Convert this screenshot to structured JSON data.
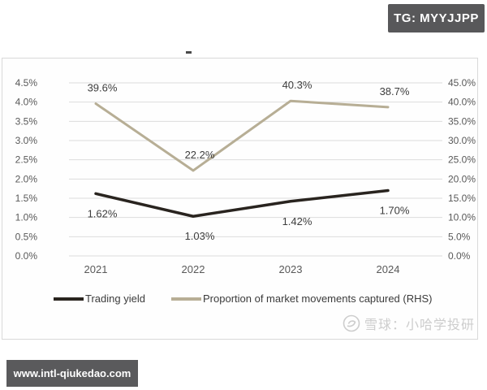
{
  "page": {
    "tg_badge": "TG: MYYJJPP",
    "watermark_url": "www.intl-qiukedao.com",
    "source_watermark": "雪球：小哈学投研"
  },
  "chart_data": {
    "type": "line",
    "title": "",
    "categories": [
      "2021",
      "2022",
      "2023",
      "2024"
    ],
    "series": [
      {
        "name": "Trading yield",
        "axis": "left",
        "color": "#29241f",
        "stroke_width": 3.5,
        "values": [
          1.62,
          1.03,
          1.42,
          1.7
        ],
        "labels": [
          "1.62%",
          "1.03%",
          "1.42%",
          "1.70%"
        ],
        "label_position": "below"
      },
      {
        "name": "Proportion of market movements captured (RHS)",
        "axis": "right",
        "color": "#b7ae95",
        "stroke_width": 3,
        "values": [
          39.6,
          22.2,
          40.3,
          38.7
        ],
        "labels": [
          "39.6%",
          "22.2%",
          "40.3%",
          "38.7%"
        ],
        "label_position": "above"
      }
    ],
    "left_axis": {
      "min": 0,
      "max": 4.5,
      "ticks": [
        "4.5%",
        "4.0%",
        "3.5%",
        "3.0%",
        "2.5%",
        "2.0%",
        "1.5%",
        "1.0%",
        "0.5%",
        "0.0%"
      ]
    },
    "right_axis": {
      "min": 0,
      "max": 45,
      "ticks": [
        "45.0%",
        "40.0%",
        "35.0%",
        "30.0%",
        "25.0%",
        "20.0%",
        "15.0%",
        "10.0%",
        "5.0%",
        "0.0%"
      ]
    },
    "grid": true,
    "gridline_color": "#dcdcdc",
    "legend_position": "bottom"
  }
}
